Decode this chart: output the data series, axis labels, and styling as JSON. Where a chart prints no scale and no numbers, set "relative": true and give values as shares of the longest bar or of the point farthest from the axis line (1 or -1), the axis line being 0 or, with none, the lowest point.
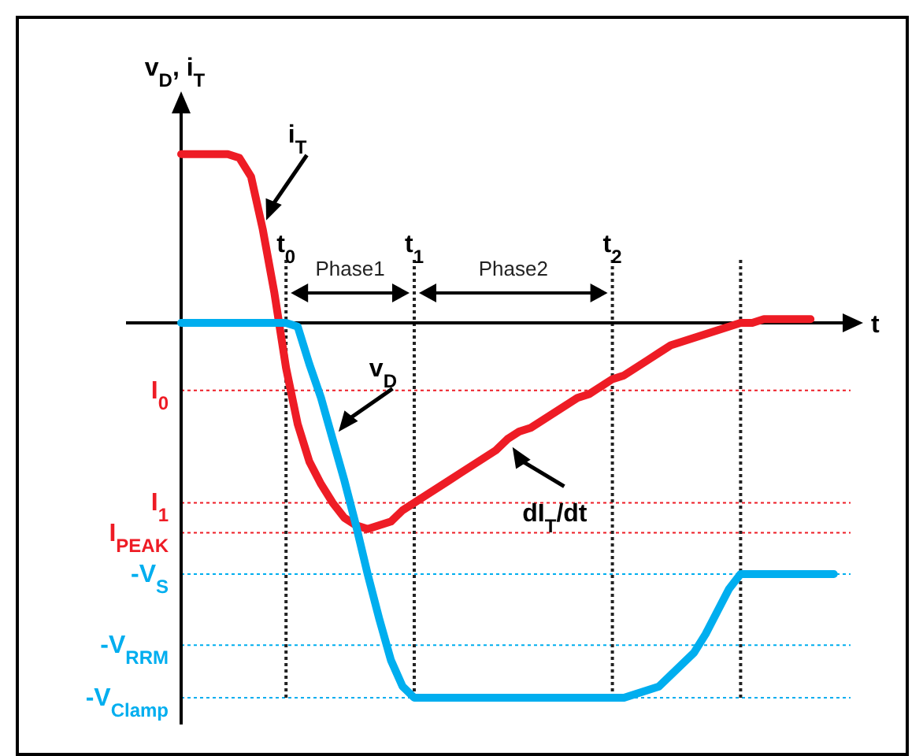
{
  "chart_data": {
    "type": "line",
    "relative": true,
    "xlabel": "t",
    "ylabel": "v$_{D}$, i$_{T}$",
    "line_style": "solid",
    "categories": [
      null,
      null,
      null,
      null,
      null,
      null,
      null,
      null,
      null,
      "t$_{0}$",
      null,
      null,
      null,
      null,
      null,
      null,
      null,
      null,
      null,
      null,
      "t$_{1}$",
      null,
      null,
      null,
      null,
      null,
      null,
      null,
      null,
      null,
      null,
      null,
      null,
      null,
      null,
      null,
      null,
      "t$_{2}$",
      null,
      null,
      null,
      null,
      null,
      null,
      null,
      null,
      null,
      null,
      null,
      null,
      null,
      null,
      null,
      null,
      null,
      null,
      null,
      null
    ],
    "series": [
      {
        "color": "#ee1c25",
        "values": [
          0.45,
          0.45,
          0.45,
          0.45,
          0.45,
          0.44,
          0.39,
          0.25,
          0.08,
          -0.12,
          -0.27,
          -0.37,
          -0.43,
          -0.48,
          -0.52,
          -0.54,
          -0.55,
          -0.54,
          -0.53,
          -0.5,
          -0.48,
          -0.46,
          -0.44,
          -0.42,
          -0.4,
          -0.38,
          -0.36,
          -0.34,
          -0.31,
          -0.29,
          -0.28,
          -0.26,
          -0.24,
          -0.22,
          -0.2,
          -0.19,
          -0.17,
          -0.15,
          -0.14,
          -0.12,
          -0.1,
          -0.08,
          -0.06,
          -0.05,
          -0.04,
          -0.03,
          -0.02,
          -0.01,
          0,
          0,
          0.01,
          0.01,
          0.01,
          0.01,
          0.01,
          null,
          null,
          null
        ]
      },
      {
        "color": "#00aeef",
        "values": [
          0,
          0,
          0,
          0,
          0,
          0,
          0,
          0,
          0,
          0,
          -0.01,
          -0.11,
          -0.2,
          -0.31,
          -0.42,
          -0.54,
          -0.67,
          -0.79,
          -0.9,
          -0.97,
          -1,
          -1,
          -1,
          -1,
          -1,
          -1,
          -1,
          -1,
          -1,
          -1,
          -1,
          -1,
          -1,
          -1,
          -1,
          -1,
          -1,
          -1,
          -1,
          -0.99,
          -0.98,
          -0.97,
          -0.94,
          -0.91,
          -0.88,
          -0.83,
          -0.77,
          -0.71,
          -0.67,
          -0.67,
          -0.67,
          -0.67,
          -0.67,
          -0.67,
          -0.67,
          -0.67,
          -0.67,
          null
        ]
      }
    ],
    "ref_lines": [
      {
        "axis": "y",
        "value": -0.18,
        "label": "I$_{0}$",
        "color": "#ee1c25"
      },
      {
        "axis": "y",
        "value": -0.48,
        "label": "I$_{1}$",
        "color": "#ee1c25"
      },
      {
        "axis": "y",
        "value": -0.56,
        "label": "I$_{PEAK}$",
        "color": "#ee1c25"
      },
      {
        "axis": "y",
        "value": -0.67,
        "label": "-V$_{S}$",
        "color": "#00aeef"
      },
      {
        "axis": "y",
        "value": -0.86,
        "label": "-V$_{RRM}$",
        "color": "#00aeef"
      },
      {
        "axis": "y",
        "value": -1,
        "label": "-V$_{Clamp}$",
        "color": "#00aeef"
      }
    ],
    "grid": "x",
    "annotations": [
      "Phase1",
      "Phase2",
      "i$_{T}$",
      "v$_{D}$",
      "dI$_{T}$/dt"
    ]
  }
}
